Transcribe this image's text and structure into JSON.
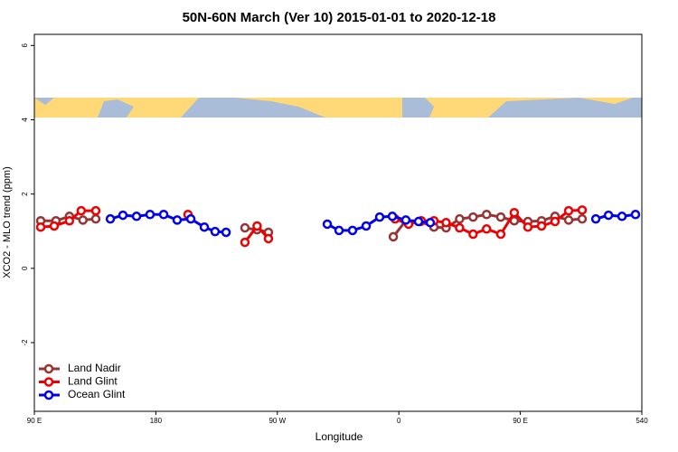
{
  "chart_data": {
    "type": "line",
    "title": "50N-60N March (Ver 10)   2015-01-01 to 2020-12-18",
    "xlabel": "Longitude",
    "ylabel": "XCO2 - MLO trend (ppm)",
    "xlim": [
      90,
      540
    ],
    "ylim": [
      -3.85,
      6.3
    ],
    "xticks": [
      {
        "value": 90,
        "label": "90 E"
      },
      180,
      {
        "value": 270,
        "label": "90 W"
      },
      {
        "value": 360,
        "label": "0"
      },
      {
        "value": 450,
        "label": "90 E"
      },
      540
    ],
    "yticks": [
      -2,
      0,
      2,
      4,
      6
    ],
    "legend": "bottomleft",
    "series": [
      {
        "name": "Land Nadir",
        "color": "#993333",
        "x": [
          94.7,
          106,
          116,
          126,
          135.5,
          null,
          246,
          255,
          263.4,
          null,
          355.9,
          365,
          376,
          386,
          395,
          405,
          415,
          425,
          435.5,
          445.5,
          455.6,
          465.7,
          475.7,
          485.8,
          495.8
        ],
        "values": [
          1.28,
          1.28,
          1.4,
          1.3,
          1.33,
          null,
          1.09,
          1.04,
          0.97,
          null,
          0.85,
          1.28,
          1.26,
          1.11,
          1.09,
          1.33,
          1.38,
          1.45,
          1.38,
          1.28,
          1.26,
          1.28,
          1.4,
          1.3,
          1.33
        ]
      },
      {
        "name": "Land Glint",
        "color": "#ee0000",
        "x": [
          94.7,
          104.7,
          116,
          124.7,
          135.5,
          null,
          203.8,
          null,
          246,
          255,
          263.4,
          null,
          357.2,
          367.2,
          376.6,
          386,
          395,
          405,
          415,
          425,
          435.5,
          445.5,
          455.6,
          465.7,
          475.7,
          485.8,
          495.8
        ],
        "values": [
          1.11,
          1.14,
          1.28,
          1.55,
          1.55,
          null,
          1.45,
          null,
          0.7,
          1.14,
          0.8,
          null,
          1.33,
          1.19,
          1.28,
          1.28,
          1.23,
          1.09,
          0.92,
          1.06,
          0.92,
          1.5,
          1.11,
          1.14,
          1.26,
          1.55,
          1.57
        ]
      },
      {
        "name": "Ocean Glint",
        "color": "#0000ee",
        "x": [
          146.3,
          155.6,
          165.7,
          175.7,
          185.8,
          195.8,
          205.9,
          215.9,
          223.9,
          232,
          null,
          307,
          315.7,
          325.7,
          335.8,
          345.8,
          355.2,
          365.2,
          374.6,
          383.3,
          null,
          505.9,
          515.3,
          525.3,
          535.3
        ],
        "values": [
          1.33,
          1.43,
          1.4,
          1.45,
          1.45,
          1.3,
          1.33,
          1.11,
          0.99,
          0.97,
          null,
          1.19,
          1.02,
          1.02,
          1.14,
          1.38,
          1.4,
          1.3,
          1.26,
          1.23,
          null,
          1.33,
          1.43,
          1.4,
          1.45
        ]
      }
    ]
  }
}
